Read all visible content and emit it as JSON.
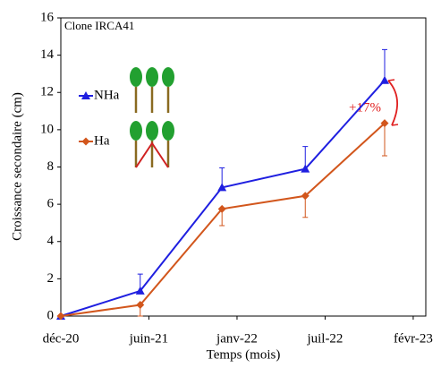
{
  "chart_data": {
    "type": "line",
    "annotations": [
      "Clone IRCA41",
      "+17%"
    ],
    "xlabel": "Temps (mois)",
    "ylabel": "Croissance secondaire (cm)",
    "x": [
      0,
      164,
      333,
      505,
      669
    ],
    "series": [
      {
        "name": "NHa",
        "color": "#1f1fe0",
        "marker": "triangle",
        "values": [
          0,
          1.35,
          6.9,
          7.9,
          12.65
        ],
        "errors": [
          0,
          0.9,
          1.05,
          1.2,
          1.65
        ],
        "error_direction": "up"
      },
      {
        "name": "Ha",
        "color": "#d2561c",
        "marker": "diamond",
        "values": [
          0,
          0.6,
          5.75,
          6.45,
          10.35
        ],
        "errors": [
          0,
          0.6,
          0.9,
          1.15,
          1.75
        ],
        "error_direction": "down"
      }
    ],
    "xlim": [
      0,
      754
    ],
    "xticks": [
      {
        "value": 0,
        "label": "déc-20"
      },
      {
        "value": 182,
        "label": "juin-21"
      },
      {
        "value": 364,
        "label": "janv-22"
      },
      {
        "value": 546,
        "label": "juil-22"
      },
      {
        "value": 728,
        "label": "févr-23"
      }
    ],
    "ylim": [
      0,
      16
    ],
    "yticks": [
      0,
      2,
      4,
      6,
      8,
      10,
      12,
      14,
      16
    ]
  }
}
